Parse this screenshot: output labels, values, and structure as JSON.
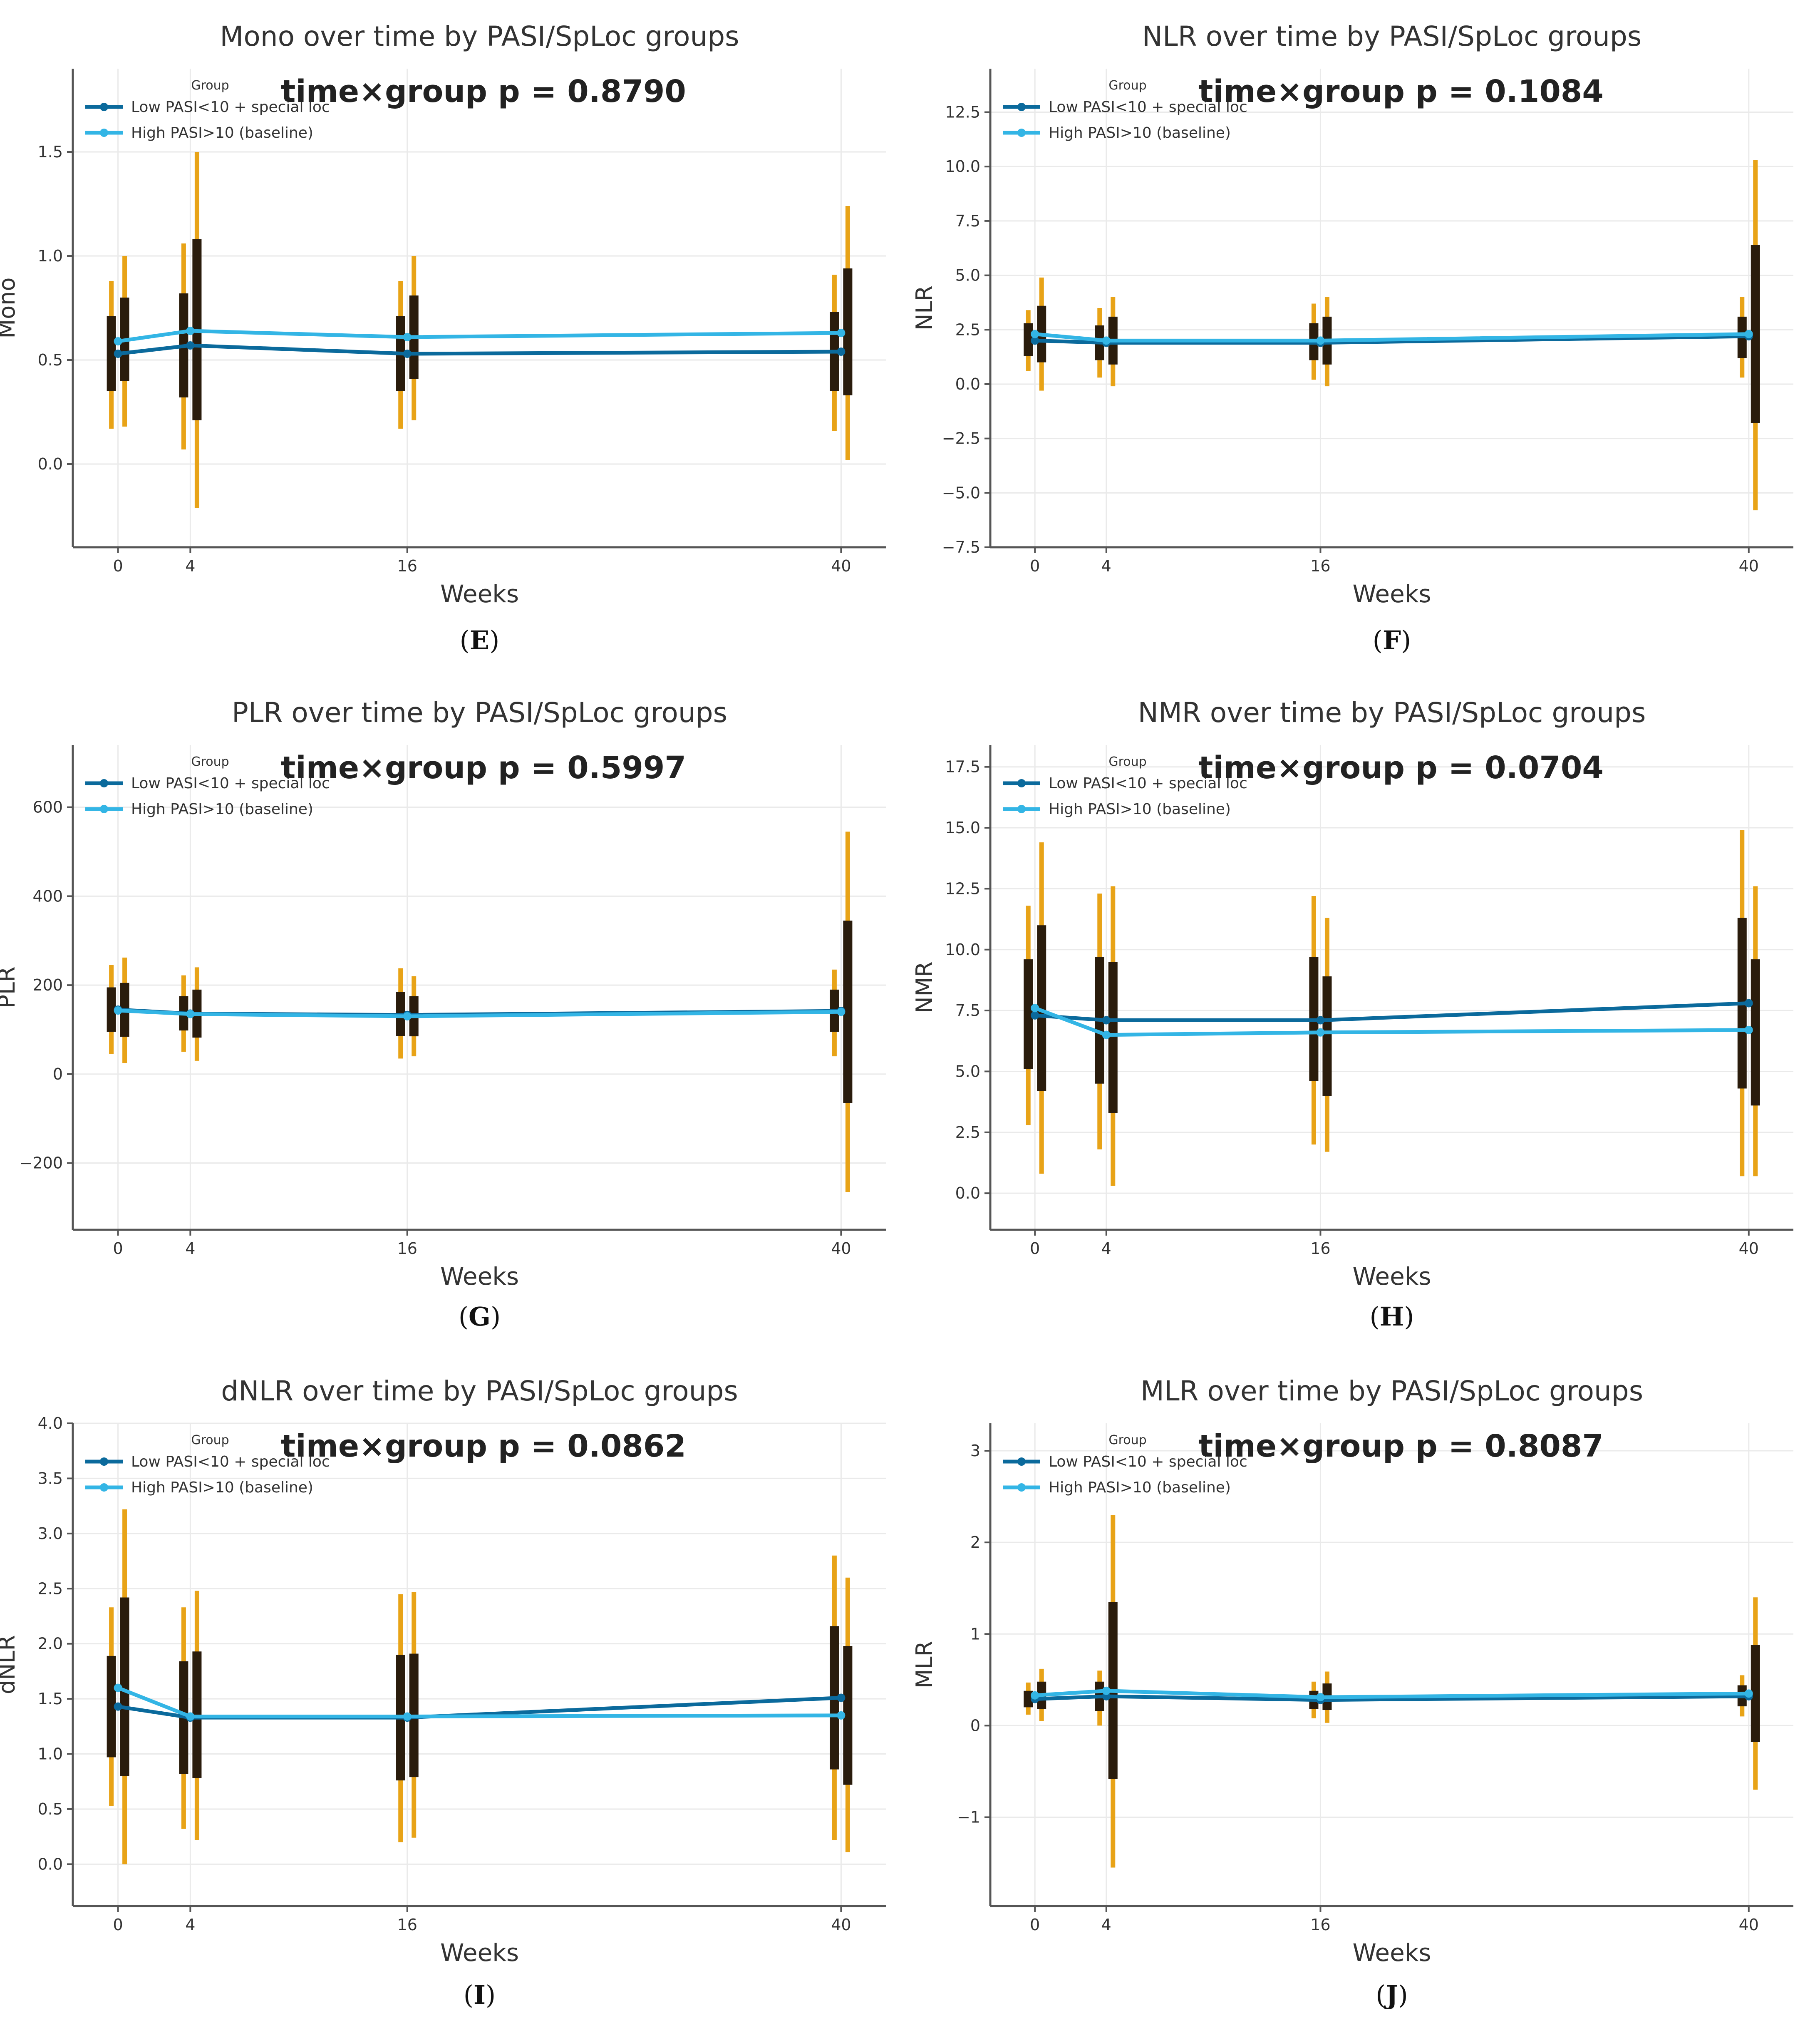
{
  "figure": {
    "caption_style": "parenthesized-bold-letter"
  },
  "legend": {
    "title": "Group",
    "low_label": "Low PASI<10 + special loc",
    "high_label": "High PASI>10 (baseline)"
  },
  "colors": {
    "low_line": "#0b6a9c",
    "high_line": "#33b5e5",
    "ci_outer": "#e8a317",
    "ci_inner": "#2a1c0c",
    "axis": "#555555",
    "grid": "#eaeaea",
    "text": "#333333"
  },
  "chart_data": [
    {
      "panel": "E",
      "title": "Mono over time by PASI/SpLoc groups",
      "type": "line",
      "xlabel": "Weeks",
      "ylabel": "Mono",
      "x": [
        0,
        4,
        16,
        40
      ],
      "xlim": [
        -2.5,
        42.5
      ],
      "ylim": [
        -0.4,
        1.9
      ],
      "yticks": [
        0.0,
        0.5,
        1.0,
        1.5
      ],
      "tick_decimals": 1,
      "annotation": "time×group p = 0.8790",
      "series": [
        {
          "name": "Low PASI<10 + special loc",
          "values": [
            0.53,
            0.57,
            0.53,
            0.54
          ],
          "ci95_low": [
            0.17,
            0.07,
            0.17,
            0.16
          ],
          "ci95_high": [
            0.88,
            1.06,
            0.88,
            0.91
          ],
          "iqr_low": [
            0.35,
            0.32,
            0.35,
            0.35
          ],
          "iqr_high": [
            0.71,
            0.82,
            0.71,
            0.73
          ]
        },
        {
          "name": "High PASI>10 (baseline)",
          "values": [
            0.59,
            0.64,
            0.61,
            0.63
          ],
          "ci95_low": [
            0.18,
            -0.21,
            0.21,
            0.02
          ],
          "ci95_high": [
            1.0,
            1.5,
            1.0,
            1.24
          ],
          "iqr_low": [
            0.4,
            0.21,
            0.41,
            0.33
          ],
          "iqr_high": [
            0.8,
            1.08,
            0.81,
            0.94
          ]
        }
      ]
    },
    {
      "panel": "F",
      "title": "NLR over time by PASI/SpLoc groups",
      "type": "line",
      "xlabel": "Weeks",
      "ylabel": "NLR",
      "x": [
        0,
        4,
        16,
        40
      ],
      "xlim": [
        -2.5,
        42.5
      ],
      "ylim": [
        -7.5,
        14.5
      ],
      "yticks": [
        -7.5,
        -5.0,
        -2.5,
        0.0,
        2.5,
        5.0,
        7.5,
        10.0,
        12.5
      ],
      "tick_decimals": 1,
      "annotation": "time×group p = 0.1084",
      "series": [
        {
          "name": "Low PASI<10 + special loc",
          "values": [
            2.0,
            1.9,
            1.9,
            2.2
          ],
          "ci95_low": [
            0.6,
            0.3,
            0.2,
            0.3
          ],
          "ci95_high": [
            3.4,
            3.5,
            3.7,
            4.0
          ],
          "iqr_low": [
            1.3,
            1.1,
            1.1,
            1.2
          ],
          "iqr_high": [
            2.8,
            2.7,
            2.8,
            3.1
          ]
        },
        {
          "name": "High PASI>10 (baseline)",
          "values": [
            2.3,
            2.0,
            2.0,
            2.3
          ],
          "ci95_low": [
            -0.3,
            -0.1,
            -0.1,
            -5.8
          ],
          "ci95_high": [
            4.9,
            4.0,
            4.0,
            10.3
          ],
          "iqr_low": [
            1.0,
            0.9,
            0.9,
            -1.8
          ],
          "iqr_high": [
            3.6,
            3.1,
            3.1,
            6.4
          ]
        }
      ]
    },
    {
      "panel": "G",
      "title": "PLR over time by PASI/SpLoc groups",
      "type": "line",
      "xlabel": "Weeks",
      "ylabel": "PLR",
      "x": [
        0,
        4,
        16,
        40
      ],
      "xlim": [
        -2.5,
        42.5
      ],
      "ylim": [
        -350,
        740
      ],
      "yticks": [
        -200,
        0,
        200,
        400,
        600
      ],
      "tick_decimals": 0,
      "annotation": "time×group p = 0.5997",
      "series": [
        {
          "name": "Low PASI<10 + special loc",
          "values": [
            145,
            136,
            133,
            142
          ],
          "ci95_low": [
            45,
            50,
            35,
            40
          ],
          "ci95_high": [
            245,
            222,
            238,
            235
          ],
          "iqr_low": [
            95,
            98,
            86,
            95
          ],
          "iqr_high": [
            195,
            175,
            185,
            190
          ]
        },
        {
          "name": "High PASI>10 (baseline)",
          "values": [
            143,
            135,
            130,
            140
          ],
          "ci95_low": [
            25,
            30,
            40,
            -265
          ],
          "ci95_high": [
            262,
            240,
            220,
            545
          ],
          "iqr_low": [
            84,
            82,
            85,
            -65
          ],
          "iqr_high": [
            205,
            190,
            175,
            345
          ]
        }
      ]
    },
    {
      "panel": "H",
      "title": "NMR over time by PASI/SpLoc groups",
      "type": "line",
      "xlabel": "Weeks",
      "ylabel": "NMR",
      "x": [
        0,
        4,
        16,
        40
      ],
      "xlim": [
        -2.5,
        42.5
      ],
      "ylim": [
        -1.5,
        18.4
      ],
      "yticks": [
        0.0,
        2.5,
        5.0,
        7.5,
        10.0,
        12.5,
        15.0,
        17.5
      ],
      "tick_decimals": 1,
      "annotation": "time×group p = 0.0704",
      "series": [
        {
          "name": "Low PASI<10 + special loc",
          "values": [
            7.3,
            7.1,
            7.1,
            7.8
          ],
          "ci95_low": [
            2.8,
            1.8,
            2.0,
            0.7
          ],
          "ci95_high": [
            11.8,
            12.3,
            12.2,
            14.9
          ],
          "iqr_low": [
            5.1,
            4.5,
            4.6,
            4.3
          ],
          "iqr_high": [
            9.6,
            9.7,
            9.7,
            11.3
          ]
        },
        {
          "name": "High PASI>10 (baseline)",
          "values": [
            7.6,
            6.5,
            6.6,
            6.7
          ],
          "ci95_low": [
            0.8,
            0.3,
            1.7,
            0.7
          ],
          "ci95_high": [
            14.4,
            12.6,
            11.3,
            12.6
          ],
          "iqr_low": [
            4.2,
            3.3,
            4.0,
            3.6
          ],
          "iqr_high": [
            11.0,
            9.5,
            8.9,
            9.6
          ]
        }
      ]
    },
    {
      "panel": "I",
      "title": "dNLR over time by PASI/SpLoc groups",
      "type": "line",
      "xlabel": "Weeks",
      "ylabel": "dNLR",
      "x": [
        0,
        4,
        16,
        40
      ],
      "xlim": [
        -2.5,
        42.5
      ],
      "ylim": [
        -0.38,
        4.0
      ],
      "yticks": [
        0.0,
        0.5,
        1.0,
        1.5,
        2.0,
        2.5,
        3.0,
        3.5,
        4.0
      ],
      "tick_decimals": 1,
      "annotation": "time×group p = 0.0862",
      "series": [
        {
          "name": "Low PASI<10 + special loc",
          "values": [
            1.43,
            1.33,
            1.33,
            1.51
          ],
          "ci95_low": [
            0.53,
            0.32,
            0.2,
            0.22
          ],
          "ci95_high": [
            2.33,
            2.33,
            2.45,
            2.8
          ],
          "iqr_low": [
            0.97,
            0.82,
            0.76,
            0.86
          ],
          "iqr_high": [
            1.89,
            1.84,
            1.9,
            2.16
          ]
        },
        {
          "name": "High PASI>10 (baseline)",
          "values": [
            1.6,
            1.34,
            1.34,
            1.35
          ],
          "ci95_low": [
            0.0,
            0.22,
            0.24,
            0.11
          ],
          "ci95_high": [
            3.22,
            2.48,
            2.47,
            2.6
          ],
          "iqr_low": [
            0.8,
            0.78,
            0.79,
            0.72
          ],
          "iqr_high": [
            2.42,
            1.93,
            1.91,
            1.98
          ]
        }
      ]
    },
    {
      "panel": "J",
      "title": "MLR over time by PASI/SpLoc groups",
      "type": "line",
      "xlabel": "Weeks",
      "ylabel": "MLR",
      "x": [
        0,
        4,
        16,
        40
      ],
      "xlim": [
        -2.5,
        42.5
      ],
      "ylim": [
        -1.97,
        3.3
      ],
      "yticks": [
        -1,
        0,
        1,
        2,
        3
      ],
      "tick_decimals": 0,
      "annotation": "time×group p = 0.8087",
      "series": [
        {
          "name": "Low PASI<10 + special loc",
          "values": [
            0.29,
            0.32,
            0.28,
            0.32
          ],
          "ci95_low": [
            0.12,
            0.0,
            0.08,
            0.1
          ],
          "ci95_high": [
            0.47,
            0.6,
            0.48,
            0.55
          ],
          "iqr_low": [
            0.2,
            0.16,
            0.18,
            0.21
          ],
          "iqr_high": [
            0.38,
            0.48,
            0.38,
            0.44
          ]
        },
        {
          "name": "High PASI>10 (baseline)",
          "values": [
            0.33,
            0.38,
            0.31,
            0.35
          ],
          "ci95_low": [
            0.05,
            -1.55,
            0.03,
            -0.7
          ],
          "ci95_high": [
            0.62,
            2.3,
            0.59,
            1.4
          ],
          "iqr_low": [
            0.18,
            -0.58,
            0.17,
            -0.18
          ],
          "iqr_high": [
            0.48,
            1.35,
            0.46,
            0.88
          ]
        }
      ]
    }
  ]
}
